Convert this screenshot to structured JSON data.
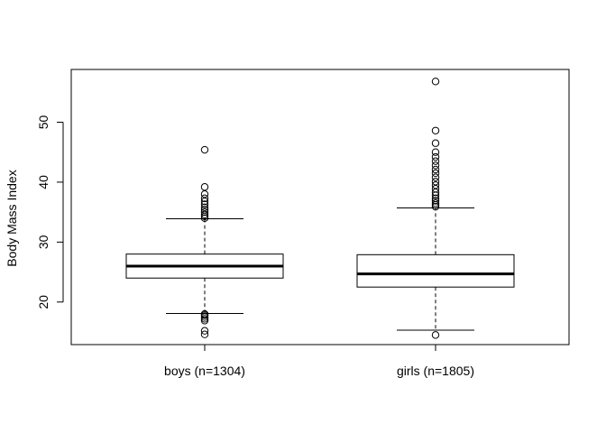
{
  "chart_data": {
    "type": "boxplot",
    "title": "",
    "xlabel": "",
    "ylabel": "Body Mass Index",
    "ylim": [
      12.9,
      58.8
    ],
    "yticks": [
      20,
      30,
      40,
      50
    ],
    "grid": false,
    "groups": [
      {
        "label": "boys (n=1304)",
        "lower_whisker": 18.1,
        "q1": 24.0,
        "median": 26.0,
        "q3": 28.0,
        "upper_whisker": 33.9,
        "outliers": [
          14.6,
          15.2,
          16.9,
          17.2,
          17.5,
          17.8,
          18.0,
          34.0,
          34.3,
          34.6,
          35.0,
          35.4,
          35.8,
          36.3,
          36.8,
          37.3,
          38.0,
          39.2,
          45.4
        ]
      },
      {
        "label": "girls (n=1805)",
        "lower_whisker": 15.3,
        "q1": 22.5,
        "median": 24.7,
        "q3": 27.9,
        "upper_whisker": 35.7,
        "outliers": [
          14.5,
          35.9,
          36.2,
          36.5,
          36.9,
          37.3,
          37.8,
          38.3,
          38.9,
          39.5,
          40.1,
          40.8,
          41.5,
          42.1,
          42.8,
          43.5,
          44.2,
          45.0,
          46.5,
          48.6,
          56.8
        ]
      }
    ]
  }
}
